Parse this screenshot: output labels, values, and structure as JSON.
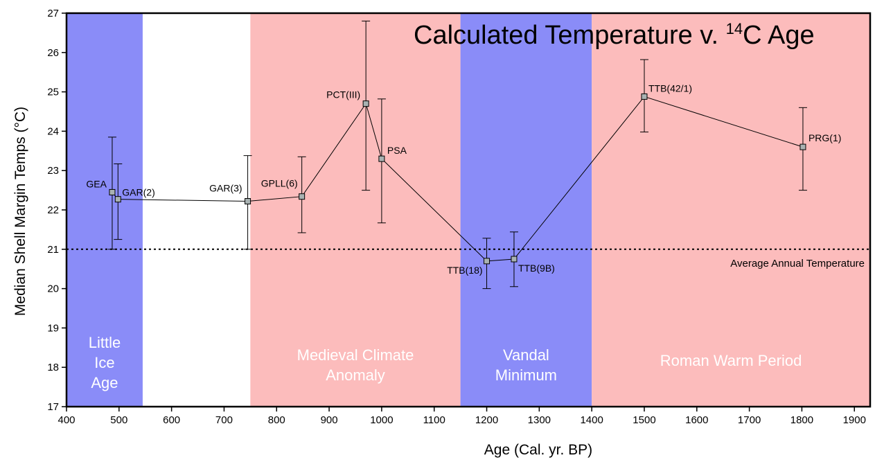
{
  "chart_data": {
    "type": "scatter",
    "title": {
      "main": "Calculated Temperature v. ",
      "superscript": "14",
      "suffix": "C Age"
    },
    "xlabel": "Age (Cal. yr. BP)",
    "ylabel": "Median Shell Margin Temps (°C)",
    "xlim": [
      400,
      1930
    ],
    "ylim": [
      17,
      27
    ],
    "x_ticks": [
      400,
      500,
      600,
      700,
      800,
      900,
      1000,
      1100,
      1200,
      1300,
      1400,
      1500,
      1600,
      1700,
      1800,
      1900
    ],
    "y_ticks": [
      17,
      18,
      19,
      20,
      21,
      22,
      23,
      24,
      25,
      26,
      27
    ],
    "grid": false,
    "periods": [
      {
        "lines": [
          "Little",
          "Ice",
          "Age"
        ],
        "x_start": 400,
        "x_end": 545,
        "color": "#8a8cf8"
      },
      {
        "lines": [
          "Medieval Climate",
          "Anomaly"
        ],
        "x_start": 750,
        "x_end": 1150,
        "color": "#fcbcbc"
      },
      {
        "lines": [
          "Vandal",
          "Minimum"
        ],
        "x_start": 1150,
        "x_end": 1400,
        "color": "#8a8cf8"
      },
      {
        "lines": [
          "Roman Warm Period"
        ],
        "x_start": 1400,
        "x_end": 1930,
        "color": "#fcbcbc"
      }
    ],
    "reference_line": {
      "y": 21,
      "label": "Average Annual Temperature"
    },
    "series": [
      {
        "points": [
          {
            "label": "GEA",
            "x": 487,
            "y": 22.45,
            "err_low": 21.0,
            "err_high": 23.85
          },
          {
            "label": "GAR(2)",
            "x": 498,
            "y": 22.27,
            "err_low": 21.25,
            "err_high": 23.17
          },
          {
            "label": "GAR(3)",
            "x": 745,
            "y": 22.22,
            "err_low": 21.0,
            "err_high": 23.38
          },
          {
            "label": "GPLL(6)",
            "x": 848,
            "y": 22.34,
            "err_low": 21.42,
            "err_high": 23.35
          },
          {
            "label": "PCT(III)",
            "x": 970,
            "y": 24.7,
            "err_low": 22.5,
            "err_high": 26.8
          },
          {
            "label": "PSA",
            "x": 1000,
            "y": 23.3,
            "err_low": 21.67,
            "err_high": 24.82
          },
          {
            "label": "TTB(18)",
            "x": 1200,
            "y": 20.7,
            "err_low": 20.0,
            "err_high": 21.28
          },
          {
            "label": "TTB(9B)",
            "x": 1252,
            "y": 20.75,
            "err_low": 20.05,
            "err_high": 21.44
          },
          {
            "label": "TTB(42/1)",
            "x": 1500,
            "y": 24.88,
            "err_low": 23.98,
            "err_high": 25.82
          },
          {
            "label": "PRG(1)",
            "x": 1802,
            "y": 23.6,
            "err_low": 22.5,
            "err_high": 24.6
          }
        ]
      }
    ]
  },
  "colors": {
    "cold_band": "#8a8cf8",
    "warm_band": "#fcbcbc",
    "marker_fill": "#a9b2b2"
  }
}
